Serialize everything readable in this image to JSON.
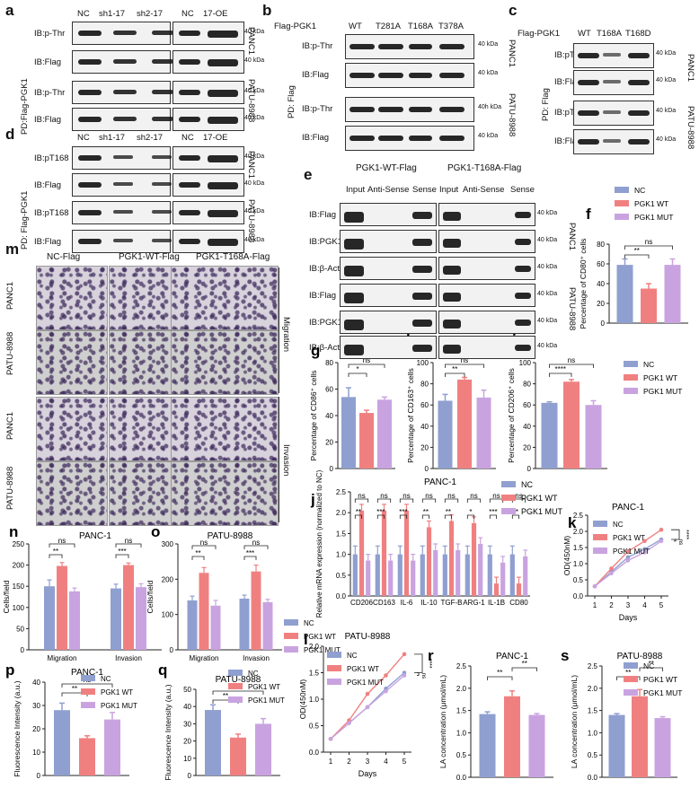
{
  "panels": {
    "a": {
      "letter": "a",
      "top": [
        "NC",
        "sh1-17",
        "sh2-17",
        "NC",
        "17-OE"
      ],
      "rows": [
        "IB:p-Thr",
        "IB:Flag",
        "IB:p-Thr",
        "IB:Flag"
      ],
      "side": "PD:Flag-PGK1",
      "kda": "40 kDa",
      "cells": [
        "PANC1",
        "PATU-8988"
      ]
    },
    "b": {
      "letter": "b",
      "head": "Flag-PGK1",
      "top": [
        "WT",
        "T281A",
        "T168A",
        "T378A"
      ],
      "rows": [
        "IB:p-Thr",
        "IB:Flag",
        "IB:p-Thr",
        "IB:Flag"
      ],
      "side": "PD: Flag",
      "kda": [
        "40 kDa",
        "40 kDa",
        "40h kDa",
        "40 kDa"
      ],
      "cells": [
        "PANC1",
        "PATU-8988"
      ]
    },
    "c": {
      "letter": "c",
      "head": "Flag-PGK1",
      "top": [
        "WT",
        "T168A",
        "T168D"
      ],
      "rows": [
        "IB:pT168",
        "IB:Flag",
        "IB:pT168",
        "IB:Flag"
      ],
      "side": "PD: Flag",
      "kda": "40 kDa",
      "cells": [
        "PANC1",
        "PATU-8988"
      ]
    },
    "d": {
      "letter": "d",
      "top": [
        "NC",
        "sh1-17",
        "sh2-17",
        "NC",
        "17-OE"
      ],
      "rows": [
        "IB:pT168",
        "IB:Flag",
        "IB:pT168",
        "IB:Flag"
      ],
      "side": "PD: Flag-PGK1",
      "kda": "40 kDa",
      "cells": [
        "PANC1",
        "PATU-8988"
      ]
    },
    "e": {
      "letter": "e",
      "groups": [
        "PGK1-WT-Flag",
        "PGK1-T168A-Flag"
      ],
      "top": [
        "Input",
        "Anti-Sense",
        "Sense",
        "Input",
        "Anti-Sense",
        "Sense"
      ],
      "rows": [
        "IB:Flag",
        "IB:PGK1",
        "IB:β-Actin",
        "IB:Flag",
        "IB:PGK1",
        "IB:β-Actin"
      ],
      "kda": "40 kDa",
      "cells": [
        "PANC1",
        "PATU-8988"
      ]
    },
    "m": {
      "letter": "m",
      "cols": [
        "NC-Flag",
        "PGK1-WT-Flag",
        "PGK1-T168A-Flag"
      ],
      "rows": [
        "PANC1",
        "PATU-8988",
        "PANC1",
        "PATU-8988"
      ],
      "groups": [
        "Migration",
        "Invasion"
      ]
    }
  },
  "legend3": [
    "NC",
    "PGK1 WT",
    "PGK1 MUT"
  ],
  "colors": {
    "nc": "#8f9fd0",
    "wt": "#f08080",
    "mut": "#c9a3e0",
    "axis": "#222222"
  },
  "chart_data": [
    {
      "id": "f",
      "type": "bar",
      "letter": "f",
      "ylabel": "Percentage of CD80⁺ cells",
      "categories": [
        "NC",
        "PGK1 WT",
        "PGK1 MUT"
      ],
      "values": [
        59,
        35,
        59
      ],
      "errors": [
        6,
        5,
        6
      ],
      "ylim": [
        0,
        80
      ],
      "yticks": [
        0,
        20,
        40,
        60,
        80
      ],
      "sig": [
        {
          "a": 0,
          "b": 1,
          "t": "**"
        },
        {
          "a": 0,
          "b": 2,
          "t": "ns"
        }
      ]
    },
    {
      "id": "g",
      "type": "bar",
      "letter": "g",
      "ylabel": "Percentage of CD86⁺ cells",
      "categories": [
        "NC",
        "PGK1 WT",
        "PGK1 MUT"
      ],
      "values": [
        54,
        42,
        52
      ],
      "errors": [
        7,
        2,
        2
      ],
      "ylim": [
        0,
        80
      ],
      "yticks": [
        0,
        20,
        40,
        60,
        80
      ],
      "sig": [
        {
          "a": 0,
          "b": 1,
          "t": "*"
        },
        {
          "a": 0,
          "b": 2,
          "t": "ns"
        }
      ]
    },
    {
      "id": "h",
      "type": "bar",
      "letter": "h",
      "ylabel": "Percentage of CD163⁺ cells",
      "categories": [
        "NC",
        "PGK1 WT",
        "PGK1 MUT"
      ],
      "values": [
        64,
        84,
        67
      ],
      "errors": [
        6,
        2,
        7
      ],
      "ylim": [
        0,
        100
      ],
      "yticks": [
        0,
        20,
        40,
        60,
        80,
        100
      ],
      "sig": [
        {
          "a": 0,
          "b": 1,
          "t": "**"
        },
        {
          "a": 0,
          "b": 2,
          "t": "ns"
        }
      ]
    },
    {
      "id": "i",
      "type": "bar",
      "letter": "i",
      "ylabel": "Percentage of CD206⁺ cells",
      "categories": [
        "NC",
        "PGK1 WT",
        "PGK1 MUT"
      ],
      "values": [
        62,
        82,
        60
      ],
      "errors": [
        1,
        2,
        4
      ],
      "ylim": [
        0,
        100
      ],
      "yticks": [
        0,
        20,
        40,
        60,
        80,
        100
      ],
      "sig": [
        {
          "a": 0,
          "b": 1,
          "t": "****"
        },
        {
          "a": 0,
          "b": 2,
          "t": "ns"
        }
      ]
    },
    {
      "id": "j",
      "type": "bar",
      "letter": "j",
      "title": "PANC-1",
      "ylabel": "Relative mRNA expression (normalized to NC)",
      "categories": [
        "CD206",
        "CD163",
        "IL-6",
        "IL-10",
        "TGF-B",
        "ARG-1",
        "IL-1B",
        "CD80"
      ],
      "series": [
        {
          "name": "NC",
          "values": [
            1.0,
            1.0,
            1.0,
            1.0,
            1.0,
            1.0,
            1.0,
            1.0
          ]
        },
        {
          "name": "PGK1 WT",
          "values": [
            2.05,
            2.05,
            2.05,
            1.65,
            1.8,
            1.75,
            0.3,
            0.3
          ]
        },
        {
          "name": "PGK1 MUT",
          "values": [
            0.85,
            0.85,
            0.85,
            1.1,
            1.1,
            1.25,
            0.8,
            0.95
          ]
        }
      ],
      "ylim": [
        0,
        2.5
      ],
      "yticks": [
        0.0,
        0.5,
        1.0,
        1.5,
        2.0,
        2.5
      ],
      "sig_wt": [
        "**",
        "***",
        "***",
        "**",
        "**",
        "*",
        "***",
        "**"
      ],
      "sig_mut": [
        "ns",
        "ns",
        "ns",
        "ns",
        "ns",
        "ns",
        "ns",
        "ns"
      ]
    },
    {
      "id": "k",
      "type": "line",
      "letter": "k",
      "title": "PANC-1",
      "xlabel": "Days",
      "ylabel": "OD(450nM)",
      "x": [
        1,
        2,
        3,
        4,
        5
      ],
      "series": [
        {
          "name": "NC",
          "values": [
            0.3,
            0.75,
            1.2,
            1.45,
            1.75
          ]
        },
        {
          "name": "PGK1 WT",
          "values": [
            0.3,
            0.85,
            1.38,
            1.7,
            2.05
          ]
        },
        {
          "name": "PGK1 MUT",
          "values": [
            0.3,
            0.7,
            1.1,
            1.35,
            1.7
          ]
        }
      ],
      "ylim": [
        0,
        2.5
      ],
      "yticks": [
        0.0,
        0.5,
        1.0,
        1.5,
        2.0,
        2.5
      ],
      "sig": [
        "****",
        "ns"
      ]
    },
    {
      "id": "l",
      "type": "line",
      "letter": "l",
      "title": "PATU-8988",
      "xlabel": "Days",
      "ylabel": "OD(450nM)",
      "x": [
        1,
        2,
        3,
        4,
        5
      ],
      "series": [
        {
          "name": "NC",
          "values": [
            0.25,
            0.55,
            0.85,
            1.2,
            1.5
          ]
        },
        {
          "name": "PGK1 WT",
          "values": [
            0.25,
            0.6,
            1.1,
            1.45,
            1.85
          ]
        },
        {
          "name": "PGK1 MUT",
          "values": [
            0.25,
            0.55,
            0.85,
            1.15,
            1.45
          ]
        }
      ],
      "ylim": [
        0,
        2.0
      ],
      "yticks": [
        0.0,
        0.5,
        1.0,
        1.5,
        2.0
      ],
      "sig": [
        "****",
        "ns"
      ]
    },
    {
      "id": "n",
      "type": "bar",
      "letter": "n",
      "title": "PANC-1",
      "ylabel": "Cells/field",
      "categories": [
        "Migration",
        "Invasion"
      ],
      "series": [
        {
          "name": "NC",
          "values": [
            150,
            145
          ],
          "errors": [
            15,
            10
          ]
        },
        {
          "name": "PGK1 WT",
          "values": [
            198,
            200
          ],
          "errors": [
            8,
            5
          ]
        },
        {
          "name": "PGK1 MUT",
          "values": [
            138,
            148
          ],
          "errors": [
            8,
            8
          ]
        }
      ],
      "ylim": [
        0,
        250
      ],
      "yticks": [
        0,
        50,
        100,
        150,
        200,
        250
      ],
      "sig_wt": [
        "**",
        "***"
      ],
      "sig_mut": [
        "ns",
        "ns"
      ]
    },
    {
      "id": "o",
      "type": "bar",
      "letter": "o",
      "title": "PATU-8988",
      "ylabel": "Cells/field",
      "categories": [
        "Migration",
        "Invasion"
      ],
      "series": [
        {
          "name": "NC",
          "values": [
            140,
            145
          ],
          "errors": [
            12,
            10
          ]
        },
        {
          "name": "PGK1 WT",
          "values": [
            218,
            222
          ],
          "errors": [
            15,
            18
          ]
        },
        {
          "name": "PGK1 MUT",
          "values": [
            125,
            135
          ],
          "errors": [
            15,
            8
          ]
        }
      ],
      "ylim": [
        0,
        300
      ],
      "yticks": [
        0,
        100,
        200,
        300
      ],
      "sig_wt": [
        "**",
        "***"
      ],
      "sig_mut": [
        "ns",
        "ns"
      ]
    },
    {
      "id": "p",
      "type": "bar",
      "letter": "p",
      "title": "PANC-1",
      "ylabel": "Fluorescence Intensity (a.u.)",
      "categories": [
        "NC",
        "PGK1 WT",
        "PGK1 MUT"
      ],
      "values": [
        28,
        16,
        24
      ],
      "errors": [
        3,
        1,
        3
      ],
      "ylim": [
        0,
        40
      ],
      "yticks": [
        0,
        10,
        20,
        30,
        40
      ],
      "sig": [
        {
          "a": 0,
          "b": 1,
          "t": "**"
        },
        {
          "a": 0,
          "b": 2,
          "t": "ns"
        }
      ]
    },
    {
      "id": "q",
      "type": "bar",
      "letter": "q",
      "title": "PATU-8988",
      "ylabel": "Fluorescence Intensity (a.u.)",
      "categories": [
        "NC",
        "PGK1 WT",
        "PGK1 MUT"
      ],
      "values": [
        38,
        22,
        30
      ],
      "errors": [
        3,
        2,
        3
      ],
      "ylim": [
        0,
        50
      ],
      "yticks": [
        0,
        10,
        20,
        30,
        40,
        50
      ],
      "sig": [
        {
          "a": 0,
          "b": 1,
          "t": "**"
        },
        {
          "a": 0,
          "b": 2,
          "t": "ns"
        }
      ]
    },
    {
      "id": "r",
      "type": "bar",
      "letter": "r",
      "title": "PANC-1",
      "ylabel": "LA concentration (μmol/mL)",
      "categories": [
        "NC",
        "PGK1 WT",
        "PGK1 MUT"
      ],
      "values": [
        1.42,
        1.82,
        1.4
      ],
      "errors": [
        0.05,
        0.12,
        0.03
      ],
      "ylim": [
        0,
        2.5
      ],
      "yticks": [
        0.0,
        0.5,
        1.0,
        1.5,
        2.0,
        2.5
      ],
      "sig": [
        {
          "a": 0,
          "b": 1,
          "t": "**"
        },
        {
          "a": 1,
          "b": 2,
          "t": "**"
        }
      ]
    },
    {
      "id": "s",
      "type": "bar",
      "letter": "s",
      "title": "PATU-8988",
      "ylabel": "LA concentration (μmol/mL)",
      "categories": [
        "NC",
        "PGK1 WT",
        "PGK1 MUT"
      ],
      "values": [
        1.4,
        1.82,
        1.33
      ],
      "errors": [
        0.03,
        0.15,
        0.03
      ],
      "ylim": [
        0,
        2.5
      ],
      "yticks": [
        0.0,
        0.5,
        1.0,
        1.5,
        2.0,
        2.5
      ],
      "sig": [
        {
          "a": 0,
          "b": 1,
          "t": "**"
        },
        {
          "a": 1,
          "b": 2,
          "t": "**"
        }
      ]
    }
  ]
}
